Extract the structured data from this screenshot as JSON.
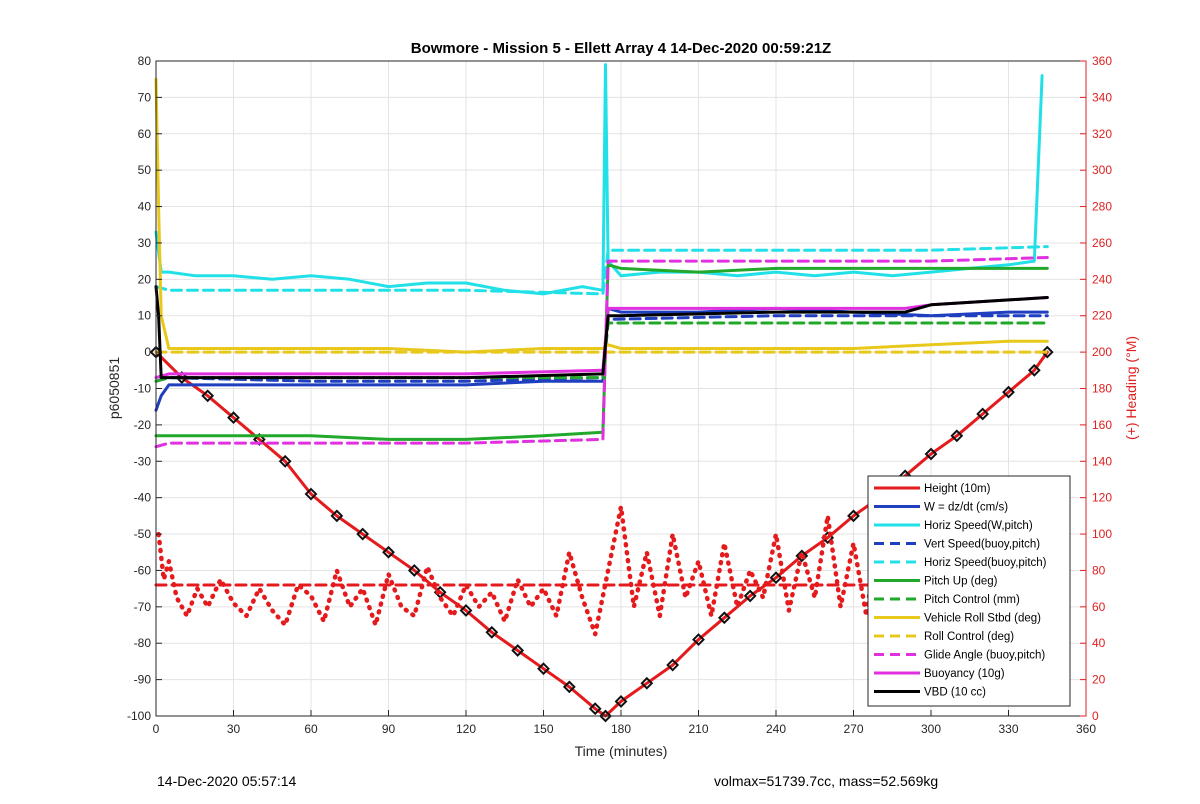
{
  "footer": {
    "timestamp": "14-Dec-2020 05:57:14",
    "stats": "volmax=51739.7cc, mass=52.569kg"
  },
  "chart_data": {
    "type": "line",
    "title": "Bowmore - Mission 5 - Ellett Array 4 14-Dec-2020 00:59:21Z",
    "xlabel": "Time (minutes)",
    "ylabel": "p6050851",
    "y2label": "(+) Heading (°M)",
    "xlim": [
      0,
      360
    ],
    "ylim": [
      -100,
      80
    ],
    "y2lim": [
      0,
      360
    ],
    "xticks": [
      0,
      30,
      60,
      90,
      120,
      150,
      180,
      210,
      240,
      270,
      300,
      330,
      360
    ],
    "yticks": [
      -100,
      -90,
      -80,
      -70,
      -60,
      -50,
      -40,
      -30,
      -20,
      -10,
      0,
      10,
      20,
      30,
      40,
      50,
      60,
      70,
      80
    ],
    "y2ticks": [
      0,
      20,
      40,
      60,
      80,
      100,
      120,
      140,
      160,
      180,
      200,
      220,
      240,
      260,
      280,
      300,
      320,
      340,
      360
    ],
    "grid": true,
    "legend_position": "bottom-right",
    "colors": {
      "axis_right": "#e02020"
    },
    "series": [
      {
        "name": "Height (10m)",
        "color": "#e41a1c",
        "style": "solid",
        "axis": "left",
        "x": [
          0,
          10,
          20,
          30,
          40,
          50,
          60,
          70,
          80,
          90,
          100,
          110,
          120,
          130,
          140,
          150,
          160,
          170,
          174,
          180,
          190,
          200,
          210,
          220,
          230,
          240,
          250,
          260,
          270,
          280,
          290,
          300,
          310,
          320,
          330,
          340,
          345
        ],
        "y": [
          0,
          -7,
          -12,
          -18,
          -24,
          -30,
          -39,
          -45,
          -50,
          -55,
          -60,
          -66,
          -71,
          -77,
          -82,
          -87,
          -92,
          -98,
          -100,
          -96,
          -91,
          -86,
          -79,
          -73,
          -67,
          -62,
          -56,
          -51,
          -45,
          -40,
          -34,
          -28,
          -23,
          -17,
          -11,
          -5,
          0
        ]
      },
      {
        "name": "W = dz/dt (cm/s)",
        "color": "#1f3fbf",
        "style": "solid",
        "axis": "left",
        "x": [
          0,
          2,
          5,
          30,
          60,
          90,
          120,
          150,
          173,
          175,
          180,
          210,
          240,
          270,
          300,
          330,
          345
        ],
        "y": [
          -16,
          -12,
          -9,
          -9,
          -9,
          -9,
          -9,
          -8,
          -8,
          12,
          11,
          11,
          12,
          11,
          10,
          11,
          11
        ]
      },
      {
        "name": "Horiz Speed(W,pitch)",
        "color": "#22e0e8",
        "style": "solid",
        "axis": "left",
        "x": [
          0,
          2,
          5,
          15,
          30,
          45,
          60,
          75,
          90,
          105,
          120,
          135,
          150,
          165,
          173,
          174,
          175,
          180,
          195,
          210,
          225,
          240,
          255,
          270,
          285,
          300,
          315,
          330,
          340,
          343
        ],
        "y": [
          33,
          22,
          22,
          21,
          21,
          20,
          21,
          20,
          18,
          19,
          19,
          17,
          16,
          18,
          17,
          79,
          25,
          21,
          22,
          22,
          21,
          22,
          21,
          22,
          21,
          22,
          23,
          24,
          25,
          76
        ]
      },
      {
        "name": "Vert Speed(buoy,pitch)",
        "color": "#1f3fbf",
        "style": "dashed",
        "axis": "left",
        "x": [
          0,
          5,
          60,
          120,
          173,
          175,
          240,
          300,
          345
        ],
        "y": [
          -8,
          -7,
          -8,
          -8,
          -7,
          9,
          10,
          10,
          10
        ]
      },
      {
        "name": "Horiz Speed(buoy,pitch)",
        "color": "#22e0e8",
        "style": "dashed",
        "axis": "left",
        "x": [
          0,
          5,
          60,
          120,
          173,
          175,
          240,
          300,
          345
        ],
        "y": [
          18,
          17,
          17,
          17,
          16,
          28,
          28,
          28,
          29
        ]
      },
      {
        "name": "Pitch Up (deg)",
        "color": "#22a82a",
        "style": "solid",
        "axis": "left",
        "x": [
          0,
          5,
          30,
          60,
          90,
          120,
          150,
          173,
          175,
          180,
          210,
          240,
          270,
          300,
          330,
          345
        ],
        "y": [
          -23,
          -23,
          -23,
          -23,
          -24,
          -24,
          -23,
          -22,
          24,
          23,
          22,
          23,
          23,
          23,
          23,
          23
        ]
      },
      {
        "name": "Pitch Control (mm)",
        "color": "#22a82a",
        "style": "dashed",
        "axis": "left",
        "x": [
          0,
          5,
          60,
          120,
          173,
          175,
          240,
          300,
          345
        ],
        "y": [
          -8,
          -7,
          -7,
          -7,
          -7,
          8,
          8,
          8,
          8
        ]
      },
      {
        "name": "Vehicle Roll Stbd (deg)",
        "color": "#e8c81a",
        "style": "solid",
        "axis": "left",
        "x": [
          0,
          1,
          2,
          5,
          30,
          60,
          90,
          120,
          150,
          173,
          175,
          180,
          210,
          240,
          270,
          300,
          330,
          345
        ],
        "y": [
          75,
          40,
          10,
          1,
          1,
          1,
          1,
          0,
          1,
          1,
          2,
          1,
          1,
          1,
          1,
          2,
          3,
          3
        ]
      },
      {
        "name": "Roll Control (deg)",
        "color": "#e8c81a",
        "style": "dashed",
        "axis": "left",
        "x": [
          0,
          5,
          60,
          120,
          173,
          175,
          240,
          300,
          345
        ],
        "y": [
          0,
          0,
          0,
          0,
          0,
          0,
          0,
          0,
          0
        ]
      },
      {
        "name": "Glide Angle (buoy,pitch)",
        "color": "#e030e0",
        "style": "dashed",
        "axis": "left",
        "x": [
          0,
          5,
          60,
          120,
          173,
          175,
          240,
          300,
          345
        ],
        "y": [
          -26,
          -25,
          -25,
          -25,
          -24,
          25,
          25,
          25,
          26
        ]
      },
      {
        "name": "Buoyancy (10g)",
        "color": "#e030e0",
        "style": "solid",
        "axis": "left",
        "x": [
          0,
          5,
          60,
          120,
          173,
          175,
          240,
          290,
          300,
          345
        ],
        "y": [
          -7,
          -6,
          -6,
          -6,
          -5,
          12,
          12,
          12,
          13,
          15
        ]
      },
      {
        "name": "VBD (10 cc)",
        "color": "#000000",
        "style": "solid",
        "axis": "left",
        "x": [
          0,
          1,
          2,
          5,
          60,
          120,
          173,
          175,
          180,
          240,
          290,
          300,
          345
        ],
        "y": [
          18,
          10,
          -7,
          -7,
          -7,
          -7,
          -6,
          10,
          10,
          11,
          11,
          13,
          15
        ]
      },
      {
        "name": "",
        "color": "#e41a1c",
        "style": "dotted",
        "axis": "right",
        "x": [
          1,
          3,
          5,
          8,
          12,
          16,
          20,
          25,
          30,
          35,
          40,
          45,
          50,
          55,
          60,
          65,
          70,
          75,
          80,
          85,
          90,
          95,
          100,
          105,
          110,
          115,
          120,
          125,
          130,
          135,
          140,
          145,
          150,
          155,
          160,
          165,
          170,
          175,
          180,
          185,
          190,
          195,
          200,
          205,
          210,
          215,
          220,
          225,
          230,
          235,
          240,
          245,
          250,
          255,
          260,
          265,
          270,
          275,
          280,
          285,
          290,
          295,
          300,
          305,
          310,
          315,
          320,
          325,
          330,
          335,
          340,
          345
        ],
        "y": [
          100,
          75,
          85,
          65,
          55,
          70,
          60,
          75,
          62,
          55,
          70,
          58,
          50,
          72,
          66,
          52,
          80,
          60,
          70,
          50,
          78,
          60,
          55,
          82,
          65,
          55,
          72,
          60,
          68,
          52,
          75,
          60,
          70,
          55,
          90,
          65,
          45,
          80,
          115,
          60,
          90,
          55,
          100,
          65,
          85,
          55,
          95,
          60,
          80,
          65,
          100,
          58,
          90,
          65,
          110,
          60,
          95,
          55,
          105,
          65,
          90,
          55,
          110,
          60,
          85,
          55,
          95,
          60,
          75,
          55,
          85,
          60
        ]
      },
      {
        "name": "",
        "color": "#e41a1c",
        "style": "dashed",
        "axis": "right",
        "x": [
          0,
          345
        ],
        "y": [
          72,
          72
        ]
      }
    ]
  }
}
